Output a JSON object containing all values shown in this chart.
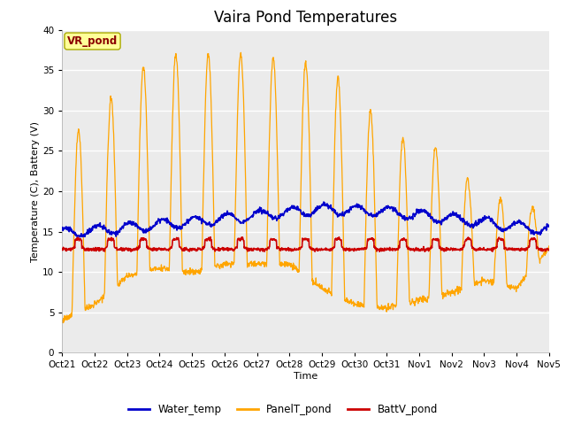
{
  "title": "Vaira Pond Temperatures",
  "xlabel": "Time",
  "ylabel": "Temperature (C), Battery (V)",
  "n_days": 15,
  "ylim": [
    0,
    40
  ],
  "yticks": [
    0,
    5,
    10,
    15,
    20,
    25,
    30,
    35,
    40
  ],
  "xtick_labels": [
    "Oct 21",
    "Oct 22",
    "Oct 23",
    "Oct 24",
    "Oct 25",
    "Oct 26",
    "Oct 27",
    "Oct 28",
    "Oct 29",
    "Oct 30",
    "Oct 31",
    "Nov 1",
    "Nov 2",
    "Nov 3",
    "Nov 4",
    "Nov 5"
  ],
  "bg_color": "#ebebeb",
  "fig_bg_color": "#ffffff",
  "water_temp_color": "#0000cc",
  "panel_temp_color": "#ffa500",
  "batt_v_color": "#cc0000",
  "legend_labels": [
    "Water_temp",
    "PanelT_pond",
    "BattV_pond"
  ],
  "annotation_text": "VR_pond",
  "annotation_bg": "#ffff99",
  "annotation_border": "#aaaa00",
  "title_fontsize": 12,
  "tick_fontsize": 7.5,
  "ylabel_fontsize": 8,
  "xlabel_fontsize": 8
}
